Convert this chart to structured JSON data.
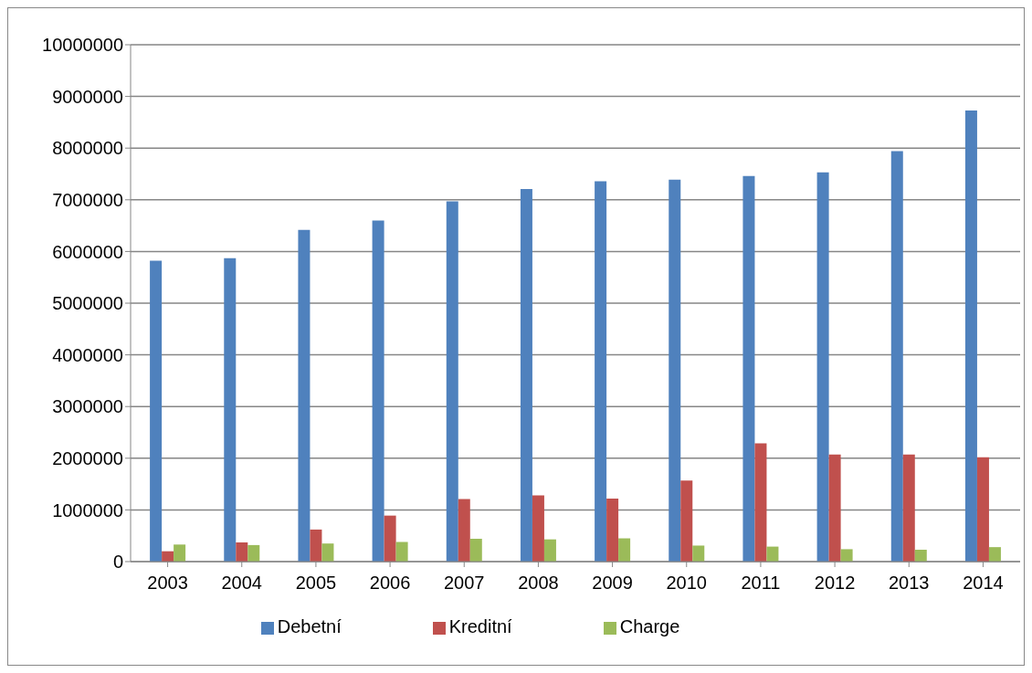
{
  "chart_data": {
    "type": "bar",
    "categories": [
      "2003",
      "2004",
      "2005",
      "2006",
      "2007",
      "2008",
      "2009",
      "2010",
      "2011",
      "2012",
      "2013",
      "2014"
    ],
    "series": [
      {
        "name": "Debetní",
        "color": "#4f81bd",
        "values": [
          5820000,
          5870000,
          6420000,
          6600000,
          6970000,
          7210000,
          7360000,
          7390000,
          7460000,
          7530000,
          7940000,
          8730000
        ]
      },
      {
        "name": "Kreditní",
        "color": "#c0504d",
        "values": [
          200000,
          370000,
          620000,
          890000,
          1210000,
          1280000,
          1220000,
          1570000,
          2290000,
          2070000,
          2070000,
          2020000
        ]
      },
      {
        "name": "Charge",
        "color": "#9bbb59",
        "values": [
          330000,
          320000,
          350000,
          380000,
          440000,
          430000,
          450000,
          310000,
          290000,
          240000,
          230000,
          280000
        ]
      }
    ],
    "ylim": [
      0,
      10000000
    ],
    "yticks": [
      0,
      1000000,
      2000000,
      3000000,
      4000000,
      5000000,
      6000000,
      7000000,
      8000000,
      9000000,
      10000000
    ],
    "grid": "y",
    "legend": "bottom"
  }
}
